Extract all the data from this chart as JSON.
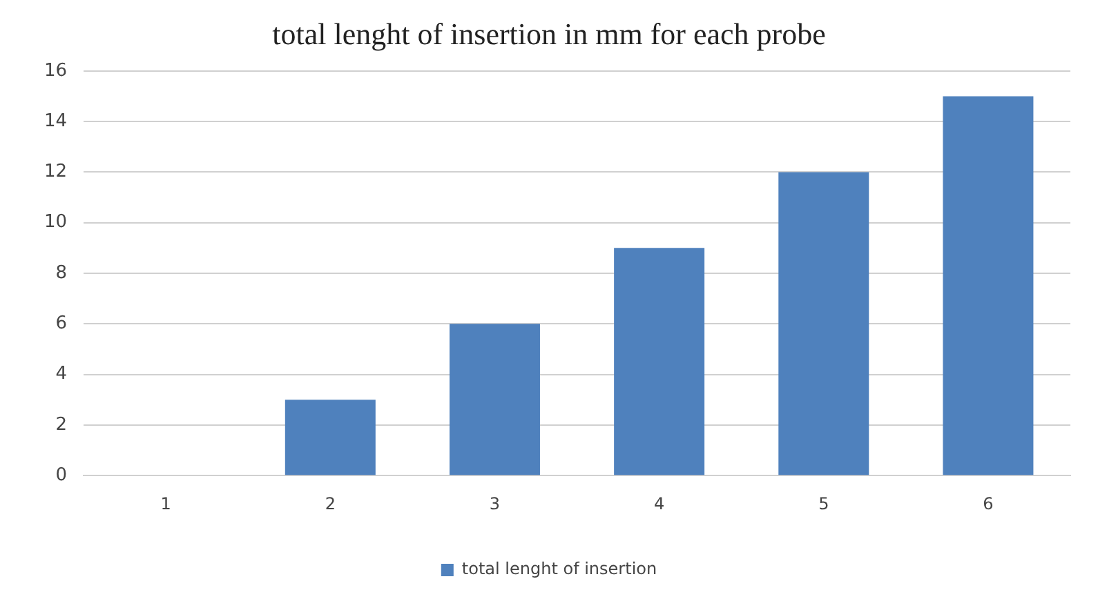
{
  "chart_data": {
    "type": "bar",
    "title": "total lenght of insertion in mm for each probe",
    "categories": [
      "1",
      "2",
      "3",
      "4",
      "5",
      "6"
    ],
    "series": [
      {
        "name": "total lenght of insertion",
        "color": "#4f81bd",
        "values": [
          0,
          3,
          6,
          9,
          12,
          15
        ]
      }
    ],
    "ylim": [
      0,
      16
    ],
    "yticks": [
      0,
      2,
      4,
      6,
      8,
      10,
      12,
      14,
      16
    ],
    "grid": "y",
    "legend": "bottom"
  }
}
